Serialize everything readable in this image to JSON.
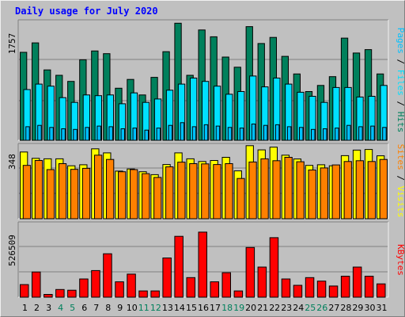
{
  "title": "Daily usage for July 2020",
  "colors": {
    "hits": "#00805c",
    "files": "#00e0ff",
    "pages": "#00c0ff",
    "visits": "#ffff00",
    "sites": "#ff8000",
    "kbytes": "#ff0000",
    "title": "#0000ff",
    "weekend_label": "#00805c",
    "weekday_label": "#000000"
  },
  "chart_data": [
    {
      "type": "bar",
      "panel": "hits-files-pages",
      "ymax_label": "1757",
      "ylim": [
        0,
        1757
      ],
      "legend_order": [
        "Pages",
        "Files",
        "Hits"
      ],
      "separator": " / ",
      "categories": [
        "1",
        "2",
        "3",
        "4",
        "5",
        "6",
        "7",
        "8",
        "9",
        "10",
        "11",
        "12",
        "13",
        "14",
        "15",
        "16",
        "17",
        "18",
        "19",
        "20",
        "21",
        "22",
        "23",
        "24",
        "25",
        "26",
        "27",
        "28",
        "29",
        "30",
        "31"
      ],
      "weekend": [
        "4",
        "5",
        "11",
        "12",
        "18",
        "19",
        "25",
        "26"
      ],
      "series": [
        {
          "name": "Hits",
          "values": [
            1300,
            1440,
            1040,
            960,
            870,
            1190,
            1320,
            1280,
            770,
            900,
            670,
            930,
            1310,
            1730,
            960,
            1630,
            1530,
            1230,
            1080,
            1680,
            1430,
            1520,
            1240,
            980,
            720,
            810,
            940,
            1510,
            1290,
            1340,
            980
          ]
        },
        {
          "name": "Files",
          "values": [
            750,
            830,
            800,
            630,
            560,
            670,
            660,
            670,
            540,
            700,
            560,
            610,
            740,
            830,
            920,
            870,
            800,
            680,
            720,
            950,
            790,
            920,
            830,
            710,
            650,
            560,
            780,
            780,
            640,
            650,
            810
          ]
        },
        {
          "name": "Pages",
          "values": [
            200,
            220,
            190,
            170,
            160,
            190,
            210,
            200,
            170,
            180,
            150,
            180,
            220,
            260,
            200,
            230,
            210,
            190,
            180,
            240,
            220,
            230,
            200,
            190,
            160,
            170,
            180,
            220,
            200,
            210,
            190
          ]
        }
      ]
    },
    {
      "type": "bar",
      "panel": "visits-sites",
      "ymax_label": "348",
      "ylim": [
        0,
        348
      ],
      "legend_order": [
        "Sites",
        "Visits"
      ],
      "separator": " / ",
      "categories": [
        "1",
        "2",
        "3",
        "4",
        "5",
        "6",
        "7",
        "8",
        "9",
        "10",
        "11",
        "12",
        "13",
        "14",
        "15",
        "16",
        "17",
        "18",
        "19",
        "20",
        "21",
        "22",
        "23",
        "24",
        "25",
        "26",
        "27",
        "28",
        "29",
        "30",
        "31"
      ],
      "series": [
        {
          "name": "Visits",
          "values": [
            315,
            285,
            283,
            283,
            250,
            255,
            330,
            311,
            225,
            235,
            222,
            208,
            256,
            311,
            283,
            270,
            275,
            290,
            226,
            345,
            325,
            338,
            300,
            282,
            252,
            255,
            250,
            298,
            324,
            327,
            297
          ]
        },
        {
          "name": "Sites",
          "values": [
            252,
            275,
            232,
            260,
            233,
            238,
            300,
            280,
            222,
            232,
            213,
            195,
            245,
            267,
            260,
            259,
            256,
            260,
            190,
            268,
            283,
            274,
            290,
            269,
            230,
            240,
            254,
            270,
            274,
            270,
            280
          ]
        }
      ]
    },
    {
      "type": "bar",
      "panel": "kbytes",
      "ymax_label": "526509",
      "ylim": [
        0,
        526509
      ],
      "legend_order": [
        "KBytes"
      ],
      "categories": [
        "1",
        "2",
        "3",
        "4",
        "5",
        "6",
        "7",
        "8",
        "9",
        "10",
        "11",
        "12",
        "13",
        "14",
        "15",
        "16",
        "17",
        "18",
        "19",
        "20",
        "21",
        "22",
        "23",
        "24",
        "25",
        "26",
        "27",
        "28",
        "29",
        "30",
        "31"
      ],
      "series": [
        {
          "name": "KBytes",
          "values": [
            90000,
            180000,
            20000,
            55000,
            50000,
            130000,
            190000,
            310000,
            110000,
            165000,
            45000,
            45000,
            280000,
            435000,
            140000,
            465000,
            110000,
            175000,
            45000,
            355000,
            215000,
            425000,
            130000,
            85000,
            140000,
            115000,
            80000,
            150000,
            215000,
            150000,
            95000
          ]
        }
      ]
    }
  ]
}
